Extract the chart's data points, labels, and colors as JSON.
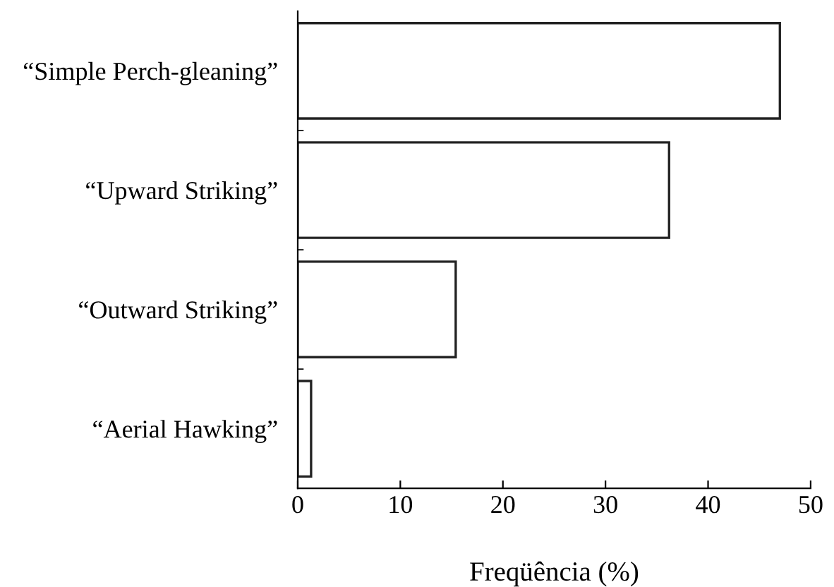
{
  "chart_data": {
    "type": "bar",
    "orientation": "horizontal",
    "xlabel": "Freqüência (%)",
    "categories": [
      "“Simple Perch-gleaning”",
      "“Upward Striking”",
      "“Outward Striking”",
      "“Aerial Hawking”"
    ],
    "values": [
      47.0,
      36.2,
      15.4,
      1.3
    ],
    "color": "#ffffff",
    "xlim": [
      0,
      50
    ],
    "xticks": [
      0,
      10,
      20,
      30,
      40,
      50
    ],
    "grid": false,
    "legend": false
  }
}
